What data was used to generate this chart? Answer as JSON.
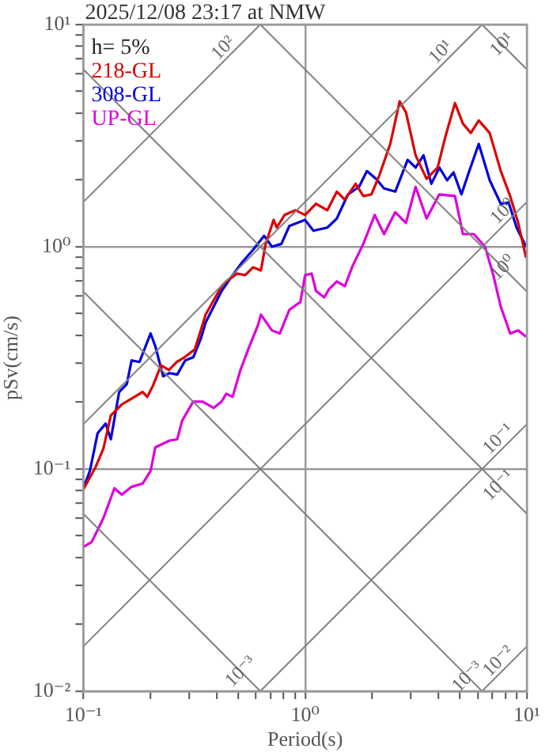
{
  "chart_data": {
    "type": "line",
    "title": "2025/12/08 23:17 at NMW",
    "xlabel": "Period(s)",
    "ylabel": "pSv(cm/s)",
    "legend_title": "h= 5%",
    "legend": "top left",
    "log": "xy",
    "grid": true,
    "marker": "none",
    "line_style": "solid",
    "xlim": [
      0.1,
      10
    ],
    "ylim": [
      0.01,
      10
    ],
    "xticks": [
      {
        "value": 0.1,
        "label": "10⁻¹"
      },
      {
        "value": 0.2,
        "label": null
      },
      {
        "value": 0.3,
        "label": null
      },
      {
        "value": 0.4,
        "label": null
      },
      {
        "value": 0.5,
        "label": null
      },
      {
        "value": 0.6,
        "label": null
      },
      {
        "value": 0.7,
        "label": null
      },
      {
        "value": 0.8,
        "label": null
      },
      {
        "value": 0.9,
        "label": null
      },
      {
        "value": 1,
        "label": "10⁰"
      },
      {
        "value": 2,
        "label": null
      },
      {
        "value": 3,
        "label": null
      },
      {
        "value": 4,
        "label": null
      },
      {
        "value": 5,
        "label": null
      },
      {
        "value": 6,
        "label": null
      },
      {
        "value": 7,
        "label": null
      },
      {
        "value": 8,
        "label": null
      },
      {
        "value": 9,
        "label": null
      },
      {
        "value": 10,
        "label": "10¹"
      }
    ],
    "yticks": [
      {
        "value": 0.01,
        "label": "10⁻²"
      },
      {
        "value": 0.02,
        "label": null
      },
      {
        "value": 0.03,
        "label": null
      },
      {
        "value": 0.04,
        "label": null
      },
      {
        "value": 0.05,
        "label": null
      },
      {
        "value": 0.06,
        "label": null
      },
      {
        "value": 0.07,
        "label": null
      },
      {
        "value": 0.08,
        "label": null
      },
      {
        "value": 0.09,
        "label": null
      },
      {
        "value": 0.1,
        "label": "10⁻¹"
      },
      {
        "value": 0.2,
        "label": null
      },
      {
        "value": 0.3,
        "label": null
      },
      {
        "value": 0.4,
        "label": null
      },
      {
        "value": 0.5,
        "label": null
      },
      {
        "value": 0.6,
        "label": null
      },
      {
        "value": 0.7,
        "label": null
      },
      {
        "value": 0.8,
        "label": null
      },
      {
        "value": 0.9,
        "label": null
      },
      {
        "value": 1,
        "label": "10⁰"
      },
      {
        "value": 2,
        "label": null
      },
      {
        "value": 3,
        "label": null
      },
      {
        "value": 4,
        "label": null
      },
      {
        "value": 5,
        "label": null
      },
      {
        "value": 6,
        "label": null
      },
      {
        "value": 7,
        "label": null
      },
      {
        "value": 8,
        "label": null
      },
      {
        "value": 9,
        "label": null
      },
      {
        "value": 10,
        "label": "10¹"
      }
    ],
    "series": [
      {
        "color": "#808080",
        "x": [
          0.1,
          0.628
        ],
        "values": [
          1.59,
          10
        ]
      },
      {
        "color": "#808080",
        "x": [
          0.1,
          6.28
        ],
        "values": [
          0.159,
          10
        ]
      },
      {
        "color": "#808080",
        "x": [
          0.1,
          10
        ],
        "values": [
          0.0159,
          1.59
        ]
      },
      {
        "color": "#808080",
        "x": [
          0.628,
          10
        ],
        "values": [
          0.01,
          0.159
        ]
      },
      {
        "color": "#808080",
        "x": [
          6.28,
          10
        ],
        "values": [
          0.01,
          0.0159
        ]
      },
      {
        "color": "#808080",
        "x": [
          6.28,
          10
        ],
        "values": [
          10,
          6.28
        ]
      },
      {
        "color": "#808080",
        "x": [
          0.628,
          10
        ],
        "values": [
          10,
          0.628
        ]
      },
      {
        "color": "#808080",
        "x": [
          0.1,
          10
        ],
        "values": [
          6.28,
          0.0628
        ]
      },
      {
        "color": "#808080",
        "x": [
          0.1,
          6.28
        ],
        "values": [
          0.628,
          0.01
        ]
      },
      {
        "color": "#808080",
        "x": [
          0.1,
          0.628
        ],
        "values": [
          0.0628,
          0.01
        ]
      },
      {
        "name": "218-GL",
        "color": "#dd0000",
        "x": [
          0.1,
          0.113,
          0.123,
          0.133,
          0.149,
          0.17,
          0.185,
          0.194,
          0.206,
          0.224,
          0.243,
          0.264,
          0.286,
          0.318,
          0.356,
          0.42,
          0.441,
          0.494,
          0.537,
          0.582,
          0.632,
          0.664,
          0.721,
          0.745,
          0.808,
          0.906,
          1.0,
          1.12,
          1.26,
          1.39,
          1.51,
          1.69,
          1.83,
          1.99,
          2.16,
          2.42,
          2.67,
          2.85,
          3.15,
          3.53,
          3.96,
          4.3,
          4.74,
          5.15,
          5.59,
          6.07,
          6.8,
          7.63,
          8.41,
          9.14,
          9.92
        ],
        "values": [
          0.081,
          0.101,
          0.123,
          0.174,
          0.195,
          0.211,
          0.222,
          0.211,
          0.237,
          0.293,
          0.279,
          0.303,
          0.318,
          0.345,
          0.495,
          0.664,
          0.698,
          0.757,
          0.745,
          0.808,
          0.782,
          1.03,
          1.32,
          1.22,
          1.39,
          1.46,
          1.39,
          1.56,
          1.46,
          1.77,
          1.63,
          1.92,
          1.69,
          1.72,
          2.09,
          2.9,
          4.51,
          4.02,
          2.58,
          2.02,
          2.27,
          3.15,
          4.43,
          3.58,
          3.25,
          3.7,
          3.25,
          2.19,
          1.69,
          1.28,
          0.892
        ]
      },
      {
        "name": "308-GL",
        "color": "#0000dd",
        "x": [
          0.1,
          0.107,
          0.116,
          0.126,
          0.133,
          0.145,
          0.157,
          0.165,
          0.179,
          0.201,
          0.211,
          0.229,
          0.244,
          0.265,
          0.288,
          0.313,
          0.339,
          0.356,
          0.42,
          0.471,
          0.519,
          0.582,
          0.653,
          0.709,
          0.782,
          0.849,
          1.0,
          1.09,
          1.26,
          1.39,
          1.56,
          1.75,
          1.9,
          2.09,
          2.27,
          2.55,
          2.9,
          3.15,
          3.42,
          3.71,
          4.03,
          4.37,
          4.67,
          5.07,
          5.5,
          6.07,
          6.8,
          7.63,
          8.28,
          8.99,
          9.92
        ],
        "values": [
          0.082,
          0.098,
          0.145,
          0.16,
          0.136,
          0.222,
          0.241,
          0.308,
          0.303,
          0.407,
          0.357,
          0.261,
          0.27,
          0.266,
          0.308,
          0.318,
          0.387,
          0.456,
          0.632,
          0.745,
          0.849,
          0.968,
          1.12,
          1.0,
          1.03,
          1.24,
          1.32,
          1.18,
          1.22,
          1.34,
          1.72,
          1.86,
          2.19,
          2.02,
          1.83,
          1.77,
          2.46,
          2.27,
          2.58,
          1.92,
          2.27,
          1.99,
          2.16,
          1.72,
          2.19,
          2.9,
          1.99,
          1.56,
          1.58,
          1.22,
          1.0
        ]
      },
      {
        "name": "UP-GL",
        "color": "#dd00dd",
        "x": [
          0.1,
          0.109,
          0.123,
          0.138,
          0.149,
          0.165,
          0.185,
          0.201,
          0.211,
          0.244,
          0.265,
          0.279,
          0.313,
          0.345,
          0.387,
          0.42,
          0.441,
          0.471,
          0.511,
          0.554,
          0.612,
          0.632,
          0.709,
          0.769,
          0.849,
          0.952,
          1.0,
          1.07,
          1.12,
          1.22,
          1.28,
          1.39,
          1.51,
          1.64,
          1.83,
          2.06,
          2.27,
          2.55,
          2.85,
          3.15,
          3.53,
          4.03,
          4.74,
          5.15,
          5.77,
          6.48,
          7.03,
          7.63,
          8.41,
          9.14,
          9.92
        ],
        "values": [
          0.0446,
          0.0469,
          0.0599,
          0.0818,
          0.0766,
          0.0831,
          0.0859,
          0.098,
          0.125,
          0.134,
          0.136,
          0.165,
          0.201,
          0.201,
          0.188,
          0.201,
          0.218,
          0.211,
          0.279,
          0.345,
          0.442,
          0.495,
          0.42,
          0.407,
          0.52,
          0.564,
          0.745,
          0.757,
          0.632,
          0.592,
          0.643,
          0.698,
          0.664,
          0.822,
          1.03,
          1.39,
          1.14,
          1.43,
          1.28,
          1.86,
          1.34,
          1.72,
          1.69,
          1.14,
          1.14,
          1.0,
          0.757,
          0.537,
          0.407,
          0.42,
          0.394
        ]
      }
    ],
    "annotations": [
      {
        "text": "10²",
        "x": 0.46,
        "y": 7.3
      },
      {
        "text": "10¹",
        "x": 4.4,
        "y": 7.0
      },
      {
        "text": "10¹",
        "x": 8.3,
        "y": 7.57
      },
      {
        "text": "10⁰",
        "x": 8.4,
        "y": 1.34
      },
      {
        "text": "10⁰",
        "x": 8.4,
        "y": 0.748
      },
      {
        "text": "10⁻¹",
        "x": 8.0,
        "y": 0.127
      },
      {
        "text": "10⁻¹",
        "x": 8.0,
        "y": 0.0785
      },
      {
        "text": "10⁻³",
        "x": 0.55,
        "y": 0.0114
      },
      {
        "text": "10⁻³",
        "x": 5.8,
        "y": 0.0108
      },
      {
        "text": "10⁻²",
        "x": 8.0,
        "y": 0.0127
      }
    ]
  }
}
